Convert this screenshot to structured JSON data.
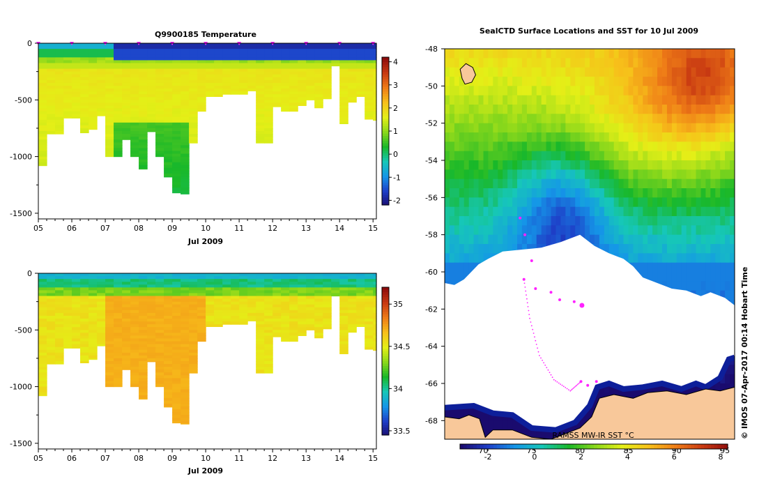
{
  "chart_data": [
    {
      "type": "heatmap",
      "title": "Q9900185  Temperature",
      "xlabel": "Jul 2009",
      "ylabel": "",
      "x_ticks": [
        "05",
        "06",
        "07",
        "08",
        "09",
        "10",
        "11",
        "12",
        "13",
        "14",
        "15"
      ],
      "x_range_day": [
        5,
        15.1
      ],
      "y_ticks": [
        "0",
        "-500",
        "-1000",
        "-1500"
      ],
      "y_range": [
        -1550,
        0
      ],
      "colorbar_ticks": [
        "4",
        "3",
        "2",
        "1",
        "0",
        "-1",
        "-2"
      ],
      "colorbar_range": [
        -2.2,
        4.2
      ],
      "colorbar_colors": [
        "#1a0b6e",
        "#1e3fc8",
        "#1596e8",
        "#16c7b8",
        "#19b829",
        "#8bd81b",
        "#e4ef17",
        "#f7c01a",
        "#ef7d17",
        "#c93a12",
        "#8e0c0c"
      ],
      "profile_days": [
        5.0,
        5.25,
        5.5,
        5.75,
        6.0,
        6.25,
        6.5,
        6.75,
        7.0,
        7.25,
        7.5,
        7.75,
        8.0,
        8.25,
        8.5,
        8.75,
        9.0,
        9.25,
        9.5,
        9.75,
        10.0,
        10.25,
        10.5,
        10.75,
        11.0,
        11.25,
        11.5,
        11.75,
        12.0,
        12.25,
        12.5,
        12.75,
        13.0,
        13.25,
        13.5,
        13.75,
        14.0,
        14.25,
        14.5,
        14.75,
        15.0
      ],
      "profile_max_depth": [
        -1080,
        -800,
        -800,
        -660,
        -660,
        -790,
        -760,
        -640,
        -1000,
        -1000,
        -850,
        -1000,
        -1110,
        -780,
        -1000,
        -1180,
        -1320,
        -1330,
        -880,
        -600,
        -470,
        -470,
        -450,
        -450,
        -450,
        -420,
        -880,
        -880,
        -560,
        -600,
        -600,
        -550,
        -500,
        -570,
        -490,
        -200,
        -710,
        -520,
        -470,
        -670,
        -680
      ],
      "surface_layer": {
        "value": -1.8,
        "depth": [
          0,
          -150
        ],
        "from_day": 7.2
      },
      "mid_value": 1.8,
      "station_markers_day": [
        5.0,
        6.0,
        7.0,
        8.0,
        9.0,
        10.0,
        11.0,
        12.0,
        13.0,
        14.0,
        15.0
      ]
    },
    {
      "type": "heatmap",
      "title": "",
      "xlabel": "Jul 2009",
      "ylabel": "",
      "x_ticks": [
        "05",
        "06",
        "07",
        "08",
        "09",
        "10",
        "11",
        "12",
        "13",
        "14",
        "15"
      ],
      "x_range_day": [
        5,
        15.1
      ],
      "y_ticks": [
        "0",
        "-500",
        "-1000",
        "-1500"
      ],
      "y_range": [
        -1550,
        0
      ],
      "colorbar_ticks": [
        "35",
        "34.5",
        "34",
        "33.5"
      ],
      "colorbar_range": [
        33.45,
        35.2
      ],
      "colorbar_colors": [
        "#1a0b6e",
        "#1e3fc8",
        "#1596e8",
        "#16c7b8",
        "#19b829",
        "#8bd81b",
        "#e4ef17",
        "#f7c01a",
        "#ef7d17",
        "#c93a12",
        "#8e0c0c"
      ],
      "profile_days": [
        5.0,
        5.25,
        5.5,
        5.75,
        6.0,
        6.25,
        6.5,
        6.75,
        7.0,
        7.25,
        7.5,
        7.75,
        8.0,
        8.25,
        8.5,
        8.75,
        9.0,
        9.25,
        9.5,
        9.75,
        10.0,
        10.25,
        10.5,
        10.75,
        11.0,
        11.25,
        11.5,
        11.75,
        12.0,
        12.25,
        12.5,
        12.75,
        13.0,
        13.25,
        13.5,
        13.75,
        14.0,
        14.25,
        14.5,
        14.75,
        15.0
      ],
      "profile_max_depth": [
        -1080,
        -800,
        -800,
        -660,
        -660,
        -790,
        -760,
        -640,
        -1000,
        -1000,
        -850,
        -1000,
        -1110,
        -780,
        -1000,
        -1180,
        -1320,
        -1330,
        -880,
        -600,
        -470,
        -470,
        -450,
        -450,
        -450,
        -420,
        -880,
        -880,
        -560,
        -600,
        -600,
        -550,
        -500,
        -570,
        -490,
        -200,
        -710,
        -520,
        -470,
        -670,
        -680
      ],
      "surface_value": 33.9,
      "mid_value": 34.55,
      "deep_value": 34.72,
      "deep_from_day": 7.0
    },
    {
      "type": "heatmap",
      "title": "SealCTD Surface Locations and SST for 10 Jul 2009",
      "xlabel": "",
      "ylabel": "",
      "y_ticks": [
        "-48",
        "-50",
        "-52",
        "-54",
        "-56",
        "-58",
        "-60",
        "-62",
        "-64",
        "-66",
        "-68"
      ],
      "lat_range": [
        -48,
        -69
      ],
      "lon_ticks": [
        "70",
        "75",
        "80",
        "85",
        "90",
        "95"
      ],
      "lon_range": [
        66,
        96
      ],
      "colorbar_ticks": [
        "-2",
        "0",
        "2",
        "4",
        "6",
        "8"
      ],
      "colorbar_range": [
        -3.2,
        8.3
      ],
      "colorbar_colors": [
        "#1a0b6e",
        "#1e3fc8",
        "#1596e8",
        "#16c7b8",
        "#19b829",
        "#8bd81b",
        "#e4ef17",
        "#f7c01a",
        "#ef7d17",
        "#c93a12",
        "#8e0c0c"
      ],
      "caption": "RAMSS MW-IR SST °C",
      "credit": "©  IMOS 07-Apr-2017 00:14 Hobart Time",
      "track_colour": "#ff22ff",
      "land_colour": "#f8c89a",
      "surface_locations": [
        {
          "lon": 73.8,
          "lat": -57.1
        },
        {
          "lon": 74.3,
          "lat": -58.0
        },
        {
          "lon": 75.0,
          "lat": -59.4
        },
        {
          "lon": 74.2,
          "lat": -60.4
        },
        {
          "lon": 75.4,
          "lat": -60.9
        },
        {
          "lon": 77.0,
          "lat": -61.1
        },
        {
          "lon": 77.9,
          "lat": -61.5
        },
        {
          "lon": 79.4,
          "lat": -61.6
        },
        {
          "lon": 80.2,
          "lat": -61.8
        },
        {
          "lon": 80.1,
          "lat": -65.9
        },
        {
          "lon": 80.8,
          "lat": -66.1
        },
        {
          "lon": 81.7,
          "lat": -65.9
        }
      ]
    }
  ]
}
